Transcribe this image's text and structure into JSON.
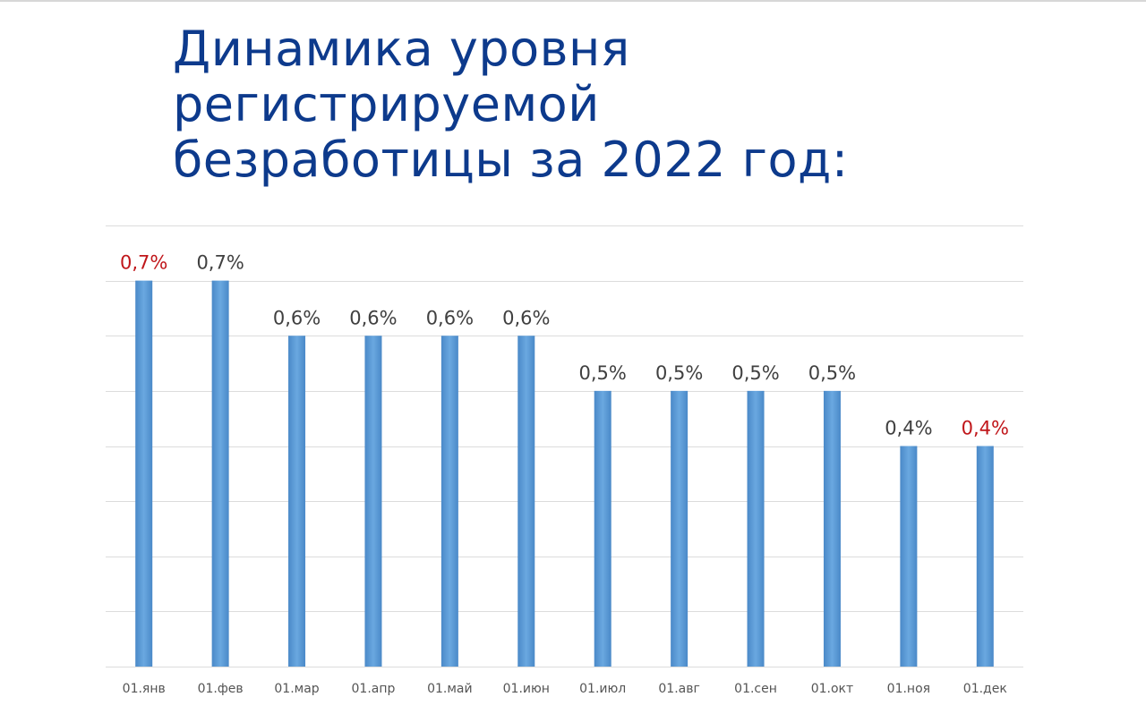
{
  "title_lines": [
    "Динамика уровня",
    "регистрируемой",
    "безработицы за 2022 год:"
  ],
  "colors": {
    "title": "#0d3a8c",
    "bar": "#5b9bd5",
    "label_default": "#404040",
    "label_highlight": "#c0161a"
  },
  "chart_data": {
    "type": "bar",
    "categories": [
      "01.янв",
      "01.фев",
      "01.мар",
      "01.апр",
      "01.май",
      "01.июн",
      "01.июл",
      "01.авг",
      "01.сен",
      "01.окт",
      "01.ноя",
      "01.дек"
    ],
    "values": [
      0.7,
      0.7,
      0.6,
      0.6,
      0.6,
      0.6,
      0.5,
      0.5,
      0.5,
      0.5,
      0.4,
      0.4
    ],
    "data_labels": [
      "0,7%",
      "0,7%",
      "0,6%",
      "0,6%",
      "0,6%",
      "0,6%",
      "0,5%",
      "0,5%",
      "0,5%",
      "0,5%",
      "0,4%",
      "0,4%"
    ],
    "highlighted": [
      0,
      11
    ],
    "ylim": [
      0,
      0.8
    ],
    "grid": true,
    "title": "Динамика уровня регистрируемой безработицы за 2022 год:",
    "xlabel": "",
    "ylabel": ""
  }
}
